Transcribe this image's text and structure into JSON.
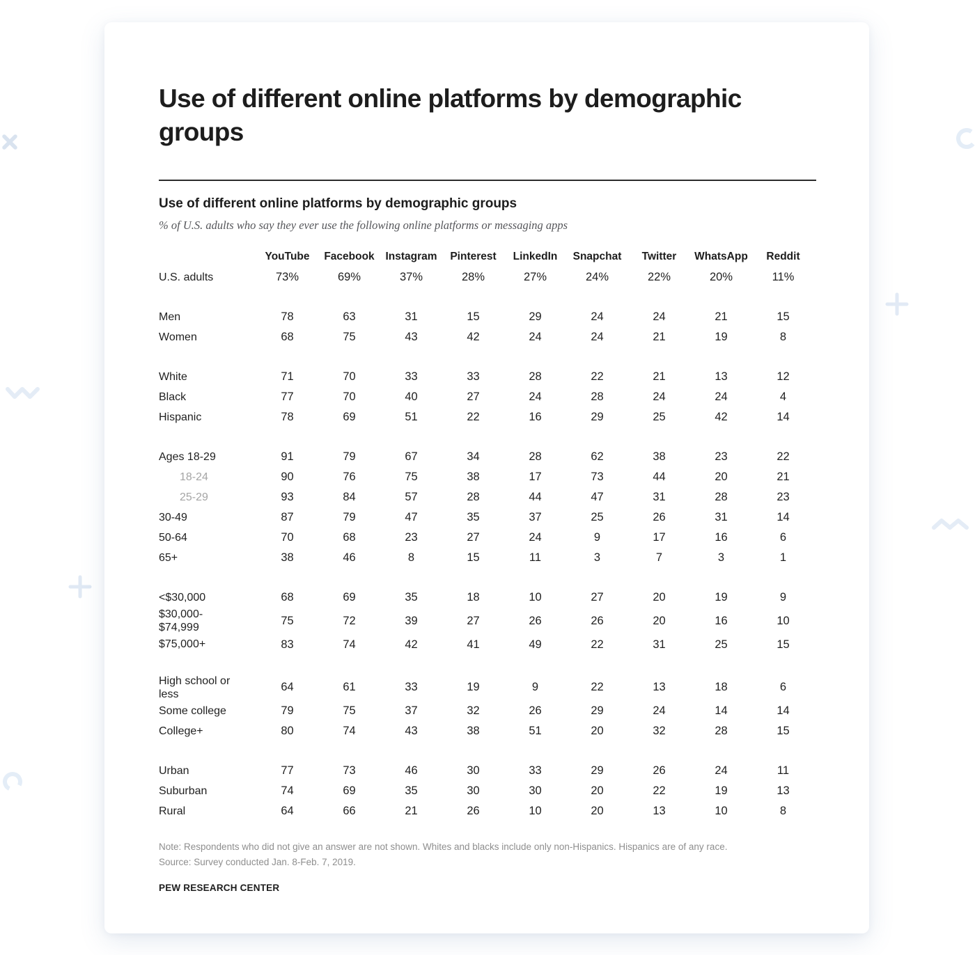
{
  "page": {
    "heading": "Use of different online platforms by demographic\ngroups"
  },
  "report": {
    "table_title": "Use of different online platforms by demographic groups",
    "table_subtitle": "% of U.S. adults who say they ever use the following online platforms or messaging apps",
    "note_line1": "Note: Respondents who did not give an answer are not shown. Whites and blacks include only non-Hispanics. Hispanics are of any race.",
    "note_line2": "Source: Survey conducted Jan. 8-Feb. 7, 2019.",
    "attribution": "PEW RESEARCH CENTER"
  },
  "chart_data": {
    "type": "table",
    "title": "Use of different online platforms by demographic groups",
    "subtitle": "% of U.S. adults who say they ever use the following online platforms or messaging apps",
    "columns": [
      "YouTube",
      "Facebook",
      "Instagram",
      "Pinterest",
      "LinkedIn",
      "Snapchat",
      "Twitter",
      "WhatsApp",
      "Reddit"
    ],
    "groups": [
      {
        "rows": [
          {
            "label": "U.S. adults",
            "values": [
              "73%",
              "69%",
              "37%",
              "28%",
              "27%",
              "24%",
              "22%",
              "20%",
              "11%"
            ]
          }
        ]
      },
      {
        "rows": [
          {
            "label": "Men",
            "values": [
              "78",
              "63",
              "31",
              "15",
              "29",
              "24",
              "24",
              "21",
              "15"
            ]
          },
          {
            "label": "Women",
            "values": [
              "68",
              "75",
              "43",
              "42",
              "24",
              "24",
              "21",
              "19",
              "8"
            ]
          }
        ]
      },
      {
        "rows": [
          {
            "label": "White",
            "values": [
              "71",
              "70",
              "33",
              "33",
              "28",
              "22",
              "21",
              "13",
              "12"
            ]
          },
          {
            "label": "Black",
            "values": [
              "77",
              "70",
              "40",
              "27",
              "24",
              "28",
              "24",
              "24",
              "4"
            ]
          },
          {
            "label": "Hispanic",
            "values": [
              "78",
              "69",
              "51",
              "22",
              "16",
              "29",
              "25",
              "42",
              "14"
            ]
          }
        ]
      },
      {
        "rows": [
          {
            "label": "Ages 18-29",
            "values": [
              "91",
              "79",
              "67",
              "34",
              "28",
              "62",
              "38",
              "23",
              "22"
            ]
          },
          {
            "label": "18-24",
            "muted": true,
            "values": [
              "90",
              "76",
              "75",
              "38",
              "17",
              "73",
              "44",
              "20",
              "21"
            ]
          },
          {
            "label": "25-29",
            "muted": true,
            "values": [
              "93",
              "84",
              "57",
              "28",
              "44",
              "47",
              "31",
              "28",
              "23"
            ]
          },
          {
            "label": "30-49",
            "values": [
              "87",
              "79",
              "47",
              "35",
              "37",
              "25",
              "26",
              "31",
              "14"
            ]
          },
          {
            "label": "50-64",
            "values": [
              "70",
              "68",
              "23",
              "27",
              "24",
              "9",
              "17",
              "16",
              "6"
            ]
          },
          {
            "label": "65+",
            "values": [
              "38",
              "46",
              "8",
              "15",
              "11",
              "3",
              "7",
              "3",
              "1"
            ]
          }
        ]
      },
      {
        "rows": [
          {
            "label": "<$30,000",
            "values": [
              "68",
              "69",
              "35",
              "18",
              "10",
              "27",
              "20",
              "19",
              "9"
            ]
          },
          {
            "label": "$30,000-\n$74,999",
            "values": [
              "75",
              "72",
              "39",
              "27",
              "26",
              "26",
              "20",
              "16",
              "10"
            ]
          },
          {
            "label": "$75,000+",
            "values": [
              "83",
              "74",
              "42",
              "41",
              "49",
              "22",
              "31",
              "25",
              "15"
            ]
          }
        ]
      },
      {
        "rows": [
          {
            "label": "High school or\nless",
            "values": [
              "64",
              "61",
              "33",
              "19",
              "9",
              "22",
              "13",
              "18",
              "6"
            ]
          },
          {
            "label": "Some college",
            "values": [
              "79",
              "75",
              "37",
              "32",
              "26",
              "29",
              "24",
              "14",
              "14"
            ]
          },
          {
            "label": "College+",
            "values": [
              "80",
              "74",
              "43",
              "38",
              "51",
              "20",
              "32",
              "28",
              "15"
            ]
          }
        ]
      },
      {
        "rows": [
          {
            "label": "Urban",
            "values": [
              "77",
              "73",
              "46",
              "30",
              "33",
              "29",
              "26",
              "24",
              "11"
            ]
          },
          {
            "label": "Suburban",
            "values": [
              "74",
              "69",
              "35",
              "30",
              "30",
              "20",
              "22",
              "19",
              "13"
            ]
          },
          {
            "label": "Rural",
            "values": [
              "64",
              "66",
              "21",
              "26",
              "10",
              "20",
              "13",
              "10",
              "8"
            ]
          }
        ]
      }
    ]
  },
  "decorations": {
    "color_strong": "#d9e3ef",
    "color_faint": "#e4ecf6",
    "icons": [
      "x-mark",
      "zigzag",
      "plus",
      "open-circle",
      "open-arc",
      "plus",
      "zigzag"
    ]
  }
}
